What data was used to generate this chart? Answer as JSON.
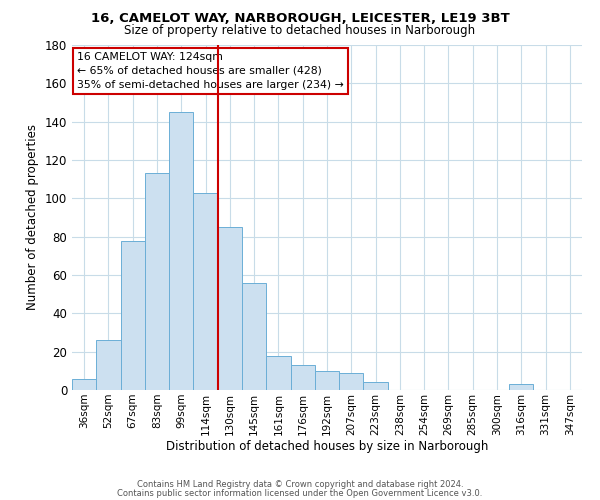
{
  "title_line1": "16, CAMELOT WAY, NARBOROUGH, LEICESTER, LE19 3BT",
  "title_line2": "Size of property relative to detached houses in Narborough",
  "xlabel": "Distribution of detached houses by size in Narborough",
  "ylabel": "Number of detached properties",
  "bar_labels": [
    "36sqm",
    "52sqm",
    "67sqm",
    "83sqm",
    "99sqm",
    "114sqm",
    "130sqm",
    "145sqm",
    "161sqm",
    "176sqm",
    "192sqm",
    "207sqm",
    "223sqm",
    "238sqm",
    "254sqm",
    "269sqm",
    "285sqm",
    "300sqm",
    "316sqm",
    "331sqm",
    "347sqm"
  ],
  "bar_values": [
    6,
    26,
    78,
    113,
    145,
    103,
    85,
    56,
    18,
    13,
    10,
    9,
    4,
    0,
    0,
    0,
    0,
    0,
    3,
    0,
    0
  ],
  "bar_color": "#cce0f0",
  "bar_edge_color": "#6baed6",
  "vline_x": 5.5,
  "vline_color": "#cc0000",
  "ylim": [
    0,
    180
  ],
  "yticks": [
    0,
    20,
    40,
    60,
    80,
    100,
    120,
    140,
    160,
    180
  ],
  "annotation_title": "16 CAMELOT WAY: 124sqm",
  "annotation_line2": "← 65% of detached houses are smaller (428)",
  "annotation_line3": "35% of semi-detached houses are larger (234) →",
  "footer_line1": "Contains HM Land Registry data © Crown copyright and database right 2024.",
  "footer_line2": "Contains public sector information licensed under the Open Government Licence v3.0.",
  "background_color": "#ffffff",
  "grid_color": "#c8dce8"
}
